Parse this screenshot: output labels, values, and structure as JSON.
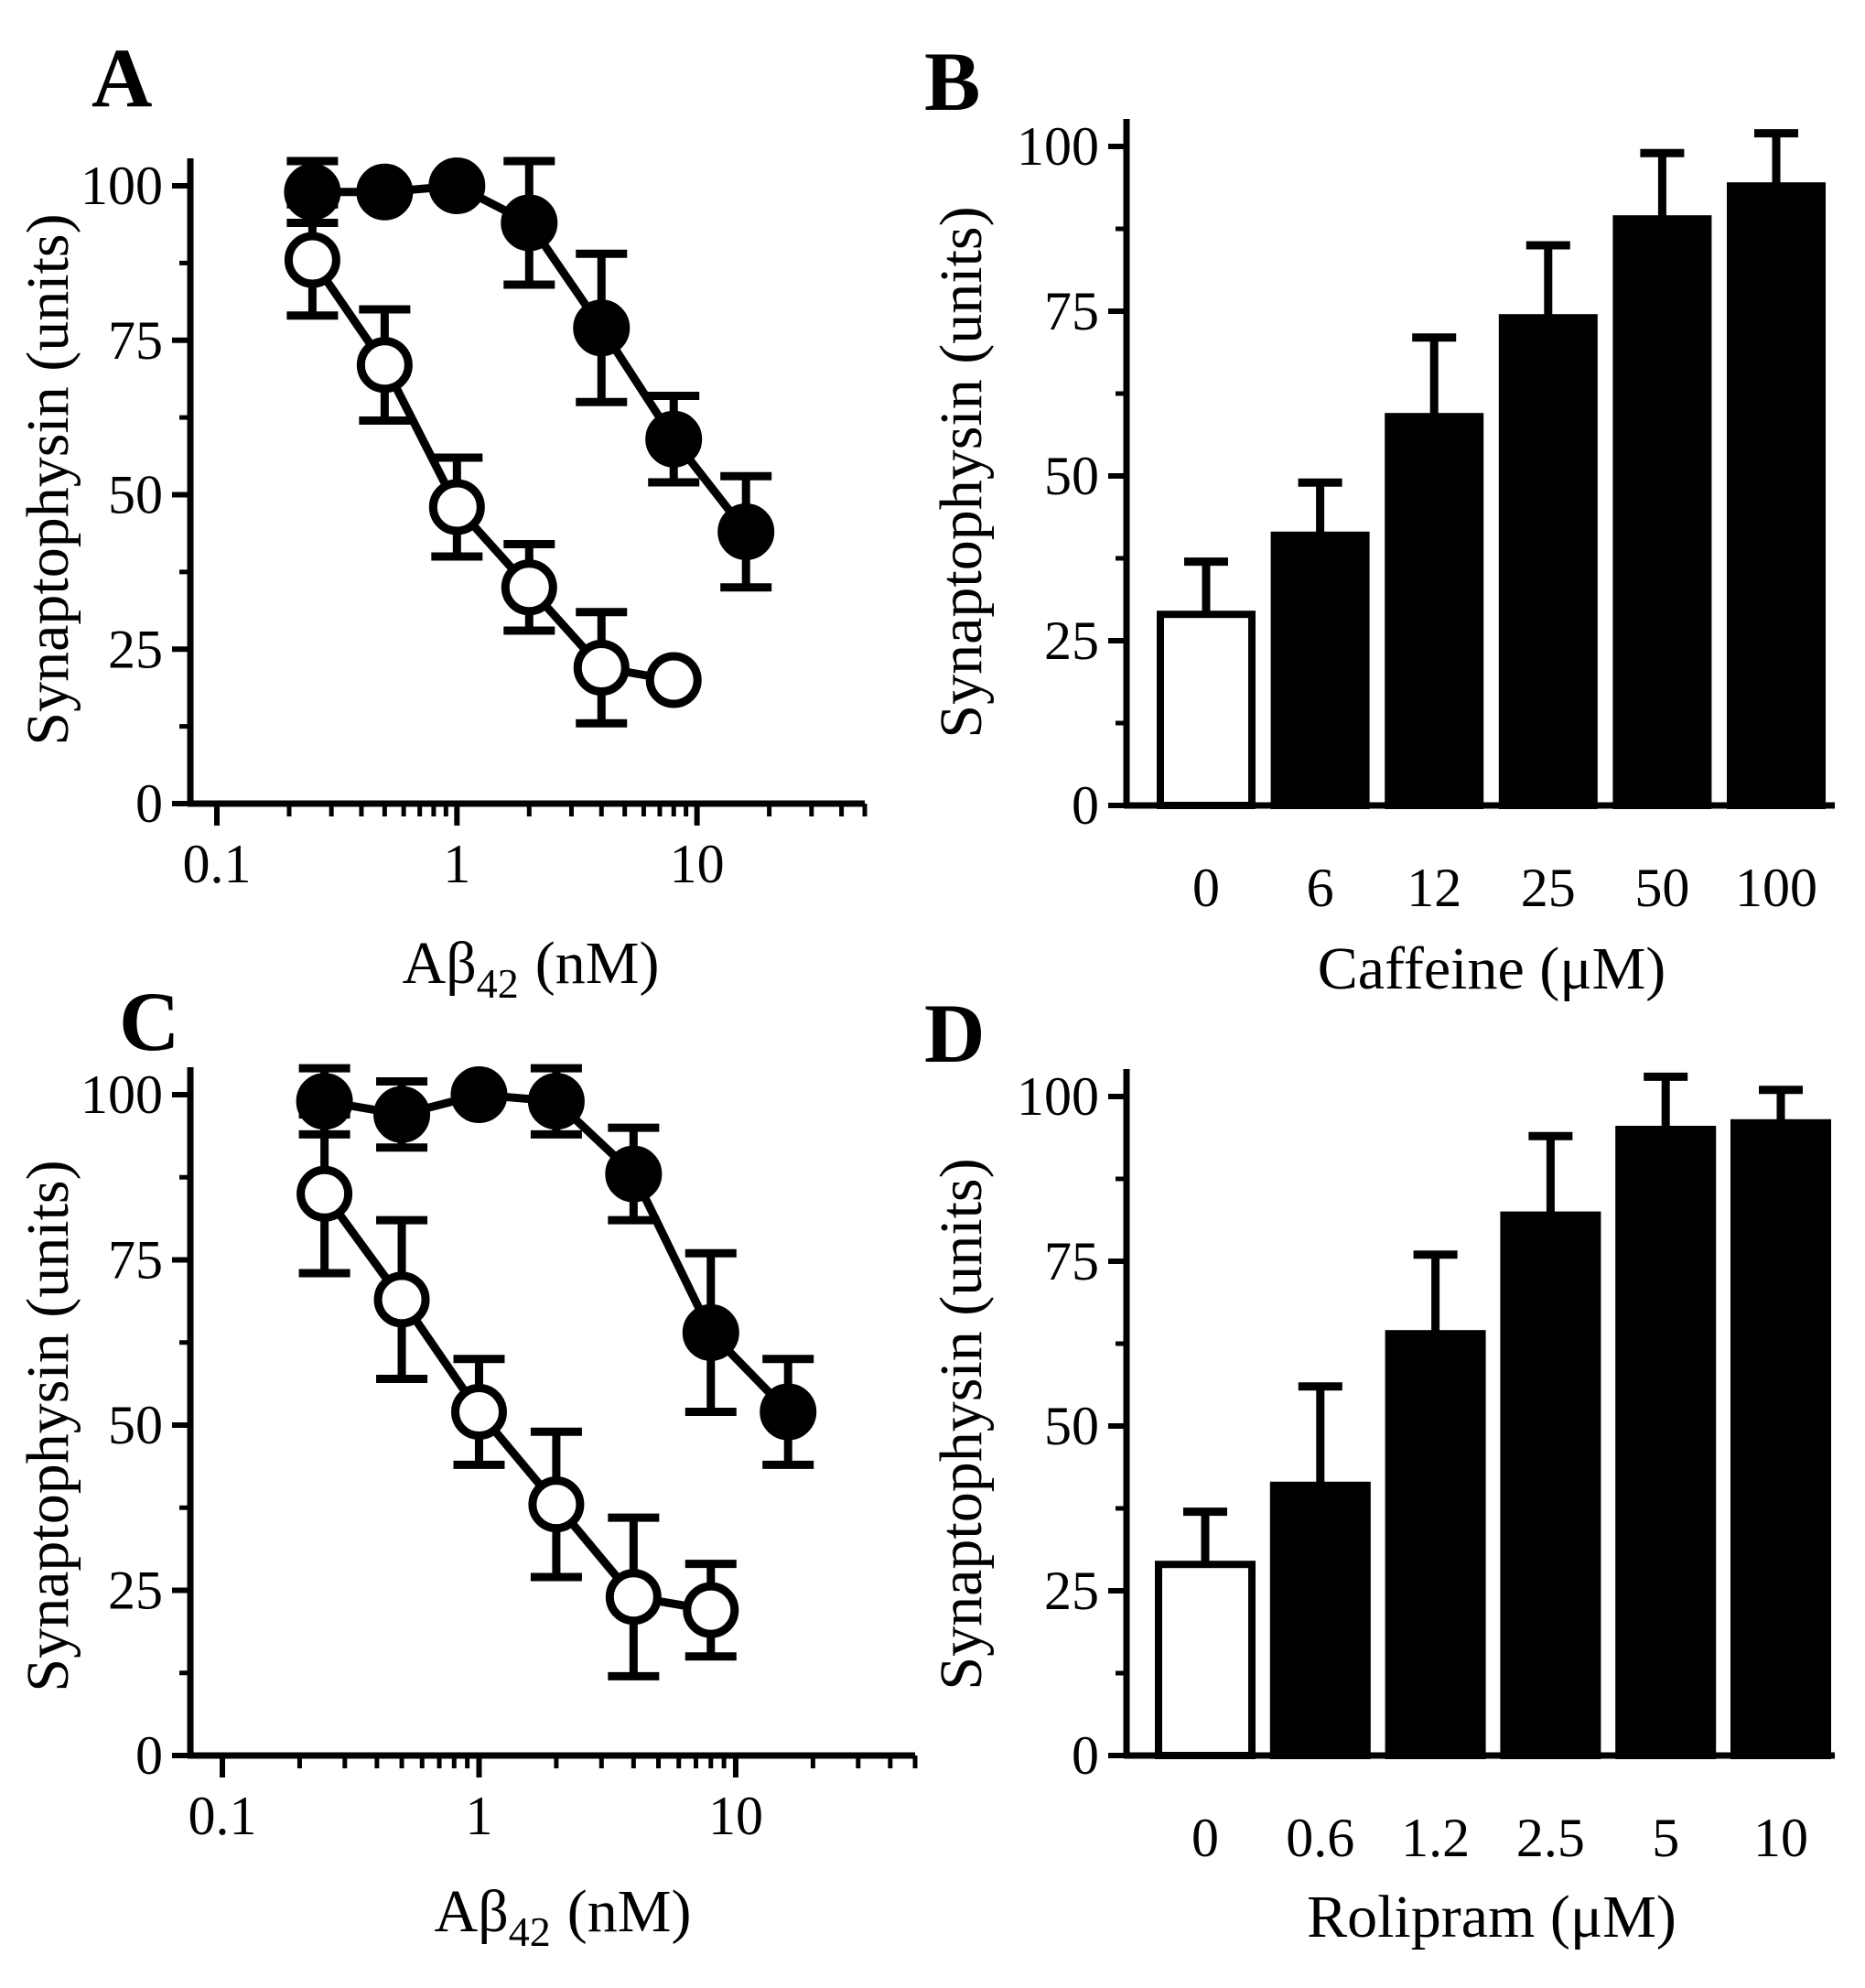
{
  "chart_data": [
    {
      "panel": "A",
      "type": "scatter",
      "xscale": "log",
      "xlim": [
        0.1,
        50
      ],
      "ylim": [
        0,
        100
      ],
      "xticks": [
        "0.1",
        "1",
        "10"
      ],
      "yticks": [
        "0",
        "25",
        "50",
        "75",
        "100"
      ],
      "xlabel_main": "Aβ",
      "xlabel_sub": "42",
      "xlabel_unit": "(nM)",
      "ylabel": "Synaptophysin (units)",
      "series": [
        {
          "marker": "filled",
          "x": [
            0.25,
            0.5,
            1,
            2,
            4,
            8,
            16
          ],
          "y": [
            99,
            99,
            100,
            94,
            77,
            59,
            44
          ],
          "err": [
            5,
            0,
            0,
            10,
            12,
            7,
            9
          ]
        },
        {
          "marker": "open",
          "x": [
            0.25,
            0.5,
            1,
            2,
            4,
            8
          ],
          "y": [
            88,
            71,
            48,
            35,
            22,
            20
          ],
          "err": [
            9,
            9,
            8,
            7,
            9,
            0
          ]
        }
      ]
    },
    {
      "panel": "B",
      "type": "bar",
      "ylim": [
        0,
        100
      ],
      "yticks": [
        "0",
        "25",
        "50",
        "75",
        "100"
      ],
      "categories": [
        "0",
        "6",
        "12",
        "25",
        "50",
        "100"
      ],
      "values": [
        29,
        41,
        59,
        74,
        89,
        94
      ],
      "err": [
        8,
        8,
        12,
        11,
        10,
        8
      ],
      "fills": [
        "#ffffff",
        "#000000",
        "#000000",
        "#000000",
        "#000000",
        "#000000"
      ],
      "xlabel": "Caffeine (μM)",
      "ylabel": "Synaptophysin (units)"
    },
    {
      "panel": "C",
      "type": "scatter",
      "xscale": "log",
      "xlim": [
        0.1,
        50
      ],
      "ylim": [
        0,
        100
      ],
      "xticks": [
        "0.1",
        "1",
        "10"
      ],
      "yticks": [
        "0",
        "25",
        "50",
        "75",
        "100"
      ],
      "xlabel_main": "Aβ",
      "xlabel_sub": "42",
      "xlabel_unit": "(nM)",
      "ylabel": "Synaptophysin (units)",
      "series": [
        {
          "marker": "filled",
          "x": [
            0.25,
            0.5,
            1,
            2,
            4,
            8,
            16
          ],
          "y": [
            99,
            97,
            100,
            99,
            88,
            64,
            52
          ],
          "err": [
            5,
            5,
            0,
            5,
            7,
            12,
            8
          ]
        },
        {
          "marker": "open",
          "x": [
            0.25,
            0.5,
            1,
            2,
            4,
            8
          ],
          "y": [
            85,
            69,
            52,
            38,
            24,
            22
          ],
          "err": [
            12,
            12,
            8,
            11,
            12,
            7
          ]
        }
      ]
    },
    {
      "panel": "D",
      "type": "bar",
      "ylim": [
        0,
        100
      ],
      "yticks": [
        "0",
        "25",
        "50",
        "75",
        "100"
      ],
      "categories": [
        "0",
        "0.6",
        "1.2",
        "2.5",
        "5",
        "10"
      ],
      "values": [
        29,
        41,
        64,
        82,
        95,
        96
      ],
      "err": [
        8,
        15,
        12,
        12,
        8,
        5
      ],
      "fills": [
        "#ffffff",
        "#000000",
        "#000000",
        "#000000",
        "#000000",
        "#000000"
      ],
      "xlabel": "Rolipram (μM)",
      "ylabel": "Synaptophysin (units)"
    }
  ]
}
